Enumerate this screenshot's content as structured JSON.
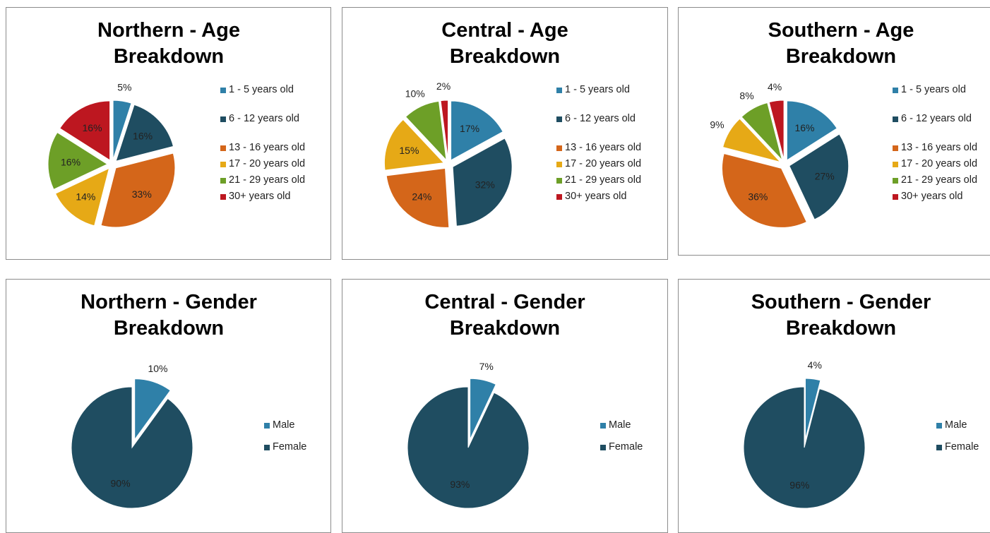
{
  "chart_data": [
    {
      "type": "pie",
      "title": "Northern - Age Breakdown",
      "categories": [
        "1 - 5 years old",
        "6 - 12 years old",
        "13 - 16 years old",
        "17 - 20 years old",
        "21 - 29 years old",
        "30+ years old"
      ],
      "values": [
        5,
        16,
        33,
        14,
        16,
        16
      ],
      "value_labels": [
        "5%",
        "16%",
        "33%",
        "14%",
        "16%",
        "16%"
      ],
      "colors": [
        "#2f80a8",
        "#1f4d61",
        "#d4661a",
        "#e6a916",
        "#6d9f27",
        "#bd1720"
      ]
    },
    {
      "type": "pie",
      "title": "Central - Age Breakdown",
      "categories": [
        "1 - 5 years old",
        "6 - 12 years old",
        "13 - 16 years old",
        "17 - 20 years old",
        "21 - 29 years old",
        "30+ years old"
      ],
      "values": [
        17,
        32,
        24,
        15,
        10,
        2
      ],
      "value_labels": [
        "17%",
        "32%",
        "24%",
        "15%",
        "10%",
        "2%"
      ],
      "colors": [
        "#2f80a8",
        "#1f4d61",
        "#d4661a",
        "#e6a916",
        "#6d9f27",
        "#bd1720"
      ]
    },
    {
      "type": "pie",
      "title": "Southern - Age Breakdown",
      "categories": [
        "1 - 5 years old",
        "6 - 12 years old",
        "13 - 16 years old",
        "17 - 20 years old",
        "21 - 29 years old",
        "30+ years old"
      ],
      "values": [
        16,
        27,
        36,
        9,
        8,
        4
      ],
      "value_labels": [
        "16%",
        "27%",
        "36%",
        "9%",
        "8%",
        "4%"
      ],
      "colors": [
        "#2f80a8",
        "#1f4d61",
        "#d4661a",
        "#e6a916",
        "#6d9f27",
        "#bd1720"
      ]
    },
    {
      "type": "pie",
      "title": "Northern - Gender Breakdown",
      "categories": [
        "Male",
        "Female"
      ],
      "values": [
        10,
        90
      ],
      "value_labels": [
        "10%",
        "90%"
      ],
      "colors": [
        "#2f80a8",
        "#1f4d61"
      ]
    },
    {
      "type": "pie",
      "title": "Central - Gender Breakdown",
      "categories": [
        "Male",
        "Female"
      ],
      "values": [
        7,
        93
      ],
      "value_labels": [
        "7%",
        "93%"
      ],
      "colors": [
        "#2f80a8",
        "#1f4d61"
      ]
    },
    {
      "type": "pie",
      "title": "Southern - Gender Breakdown",
      "categories": [
        "Male",
        "Female"
      ],
      "values": [
        4,
        96
      ],
      "value_labels": [
        "4%",
        "96%"
      ],
      "colors": [
        "#2f80a8",
        "#1f4d61"
      ]
    }
  ]
}
